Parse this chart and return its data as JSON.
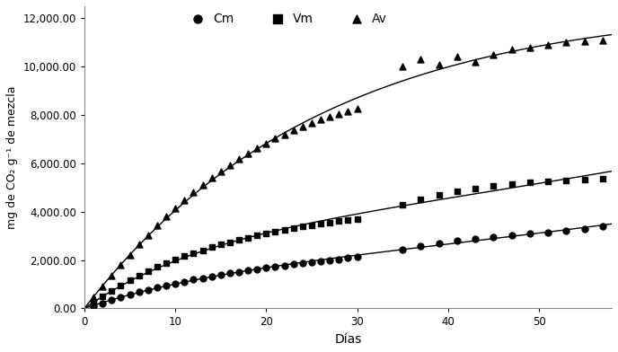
{
  "xlabel": "Días",
  "ylabel": "mg de CO₂ g⁻¹ de mezcla",
  "xlim": [
    0,
    58
  ],
  "ylim": [
    0,
    12500
  ],
  "yticks": [
    0,
    2000,
    4000,
    6000,
    8000,
    10000,
    12000
  ],
  "ytick_labels": [
    "0.00",
    "2,000.00",
    "4,000.00",
    "6,000.00",
    "8,000.00",
    "10,000.00",
    "12,000.00"
  ],
  "xticks": [
    0,
    10,
    20,
    30,
    40,
    50
  ],
  "legend_labels": [
    "Cm",
    "Vm",
    "Av"
  ],
  "color": "#000000",
  "Cm_scatter_x": [
    1,
    2,
    3,
    4,
    5,
    6,
    7,
    8,
    9,
    10,
    11,
    12,
    13,
    14,
    15,
    16,
    17,
    18,
    19,
    20,
    21,
    22,
    23,
    24,
    25,
    26,
    27,
    28,
    29,
    30,
    35,
    37,
    39,
    41,
    43,
    45,
    47,
    49,
    51,
    53,
    55,
    57
  ],
  "Cm_scatter_y": [
    100,
    220,
    340,
    460,
    570,
    670,
    770,
    860,
    950,
    1030,
    1110,
    1190,
    1260,
    1330,
    1400,
    1460,
    1520,
    1580,
    1630,
    1680,
    1730,
    1780,
    1830,
    1880,
    1920,
    1960,
    2000,
    2040,
    2080,
    2120,
    2450,
    2570,
    2690,
    2790,
    2870,
    2960,
    3040,
    3090,
    3150,
    3230,
    3300,
    3380
  ],
  "Vm_scatter_x": [
    1,
    2,
    3,
    4,
    5,
    6,
    7,
    8,
    9,
    10,
    11,
    12,
    13,
    14,
    15,
    16,
    17,
    18,
    19,
    20,
    21,
    22,
    23,
    24,
    25,
    26,
    27,
    28,
    29,
    30,
    35,
    37,
    39,
    41,
    43,
    45,
    47,
    49,
    51,
    53,
    55,
    57
  ],
  "Vm_scatter_y": [
    250,
    500,
    730,
    950,
    1160,
    1360,
    1540,
    1710,
    1870,
    2020,
    2160,
    2290,
    2410,
    2530,
    2640,
    2740,
    2840,
    2930,
    3010,
    3090,
    3170,
    3240,
    3310,
    3380,
    3440,
    3500,
    3560,
    3610,
    3660,
    3710,
    4300,
    4500,
    4680,
    4830,
    4960,
    5060,
    5140,
    5200,
    5250,
    5290,
    5320,
    5360
  ],
  "Av_scatter_x": [
    1,
    2,
    3,
    4,
    5,
    6,
    7,
    8,
    9,
    10,
    11,
    12,
    13,
    14,
    15,
    16,
    17,
    18,
    19,
    20,
    21,
    22,
    23,
    24,
    25,
    26,
    27,
    28,
    29,
    30,
    35,
    37,
    39,
    41,
    43,
    45,
    47,
    49,
    51,
    53,
    55,
    57
  ],
  "Av_scatter_y": [
    450,
    900,
    1350,
    1790,
    2220,
    2640,
    3040,
    3430,
    3800,
    4150,
    4490,
    4810,
    5110,
    5400,
    5670,
    5930,
    6180,
    6410,
    6630,
    6830,
    7020,
    7200,
    7370,
    7530,
    7670,
    7800,
    7930,
    8050,
    8160,
    8260,
    10000,
    10300,
    10100,
    10400,
    10200,
    10500,
    10700,
    10800,
    10900,
    11000,
    11050,
    11100
  ],
  "Cm_curve": {
    "A": 3900,
    "b": 0.12,
    "c": 0.0008
  },
  "Vm_curve": {
    "A": 5700,
    "b": 0.13,
    "c": 0.0008
  },
  "Av_curve": {
    "A": 13500,
    "b": 0.16,
    "c": 0.004
  }
}
